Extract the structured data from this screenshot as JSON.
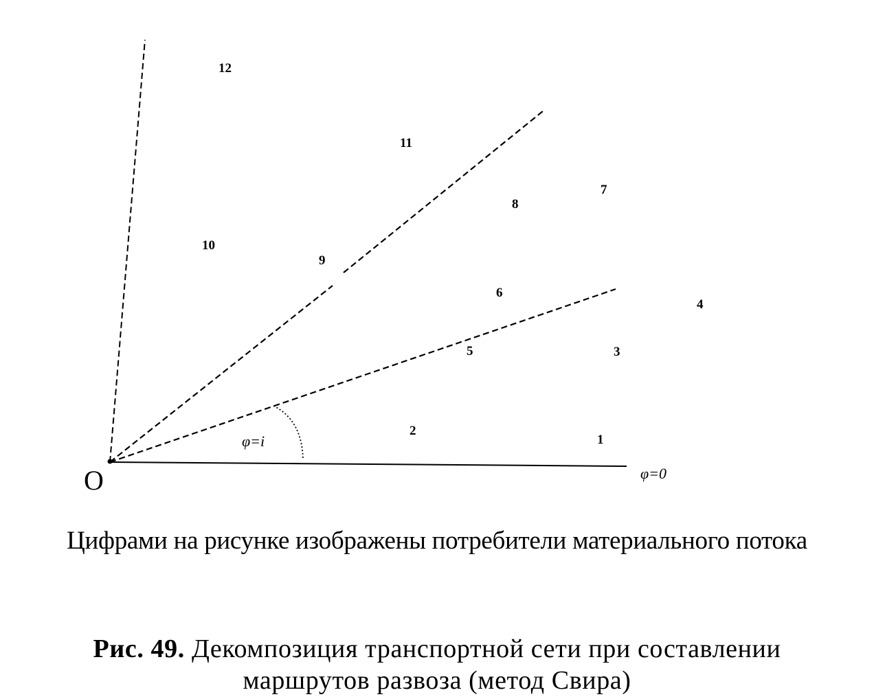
{
  "diagram": {
    "origin_label": "O",
    "angle_labels": {
      "baseline": "φ=0",
      "sector": "φ=i"
    },
    "consumers": [
      "1",
      "2",
      "3",
      "4",
      "5",
      "6",
      "7",
      "8",
      "9",
      "10",
      "11",
      "12"
    ]
  },
  "note": "Цифрами на рисунке изображены потребители материального потока",
  "caption": {
    "prefix": "Рис. 49.",
    "line1": "Декомпозиция транспортной сети при составлении",
    "line2": "маршрутов развоза (метод Свира)"
  }
}
